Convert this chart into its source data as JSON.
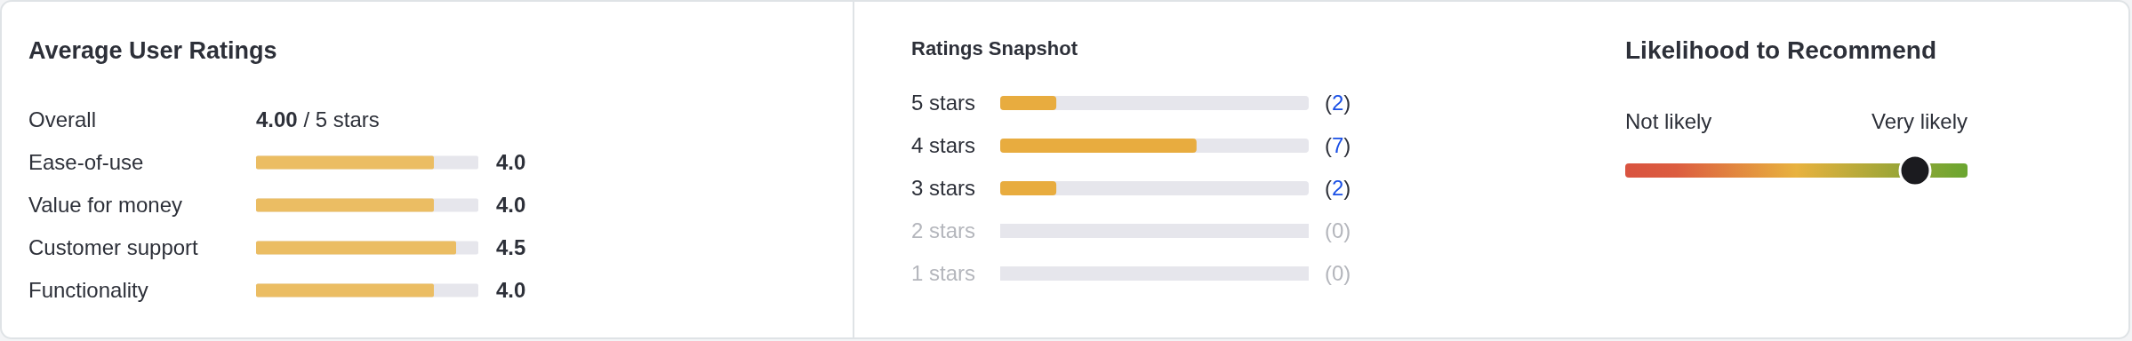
{
  "chart_data": [
    {
      "type": "bar",
      "orientation": "horizontal",
      "title": "Average User Ratings",
      "categories": [
        "Ease-of-use",
        "Value for money",
        "Customer support",
        "Functionality"
      ],
      "values": [
        4.0,
        4.0,
        4.5,
        4.0
      ],
      "value_labels": [
        "4.0",
        "4.0",
        "4.5",
        "4.0"
      ],
      "color": "#ebbd63",
      "xlim": [
        0,
        5
      ],
      "annotations": [
        "Overall",
        "4.00 / 5 stars"
      ]
    },
    {
      "type": "bar",
      "orientation": "horizontal",
      "title": "Ratings Snapshot",
      "categories": [
        "5 stars",
        "4 stars",
        "3 stars",
        "2 stars",
        "1 stars"
      ],
      "values": [
        2,
        7,
        2,
        0,
        0
      ],
      "value_labels": [
        "(2)",
        "(7)",
        "(2)",
        "(0)",
        "(0)"
      ],
      "color": "#e8ac3f",
      "xlim": [
        0,
        11
      ]
    },
    {
      "type": "other",
      "title": "Likelihood to Recommend",
      "annotations": [
        "Not likely",
        "Very likely"
      ]
    }
  ]
}
